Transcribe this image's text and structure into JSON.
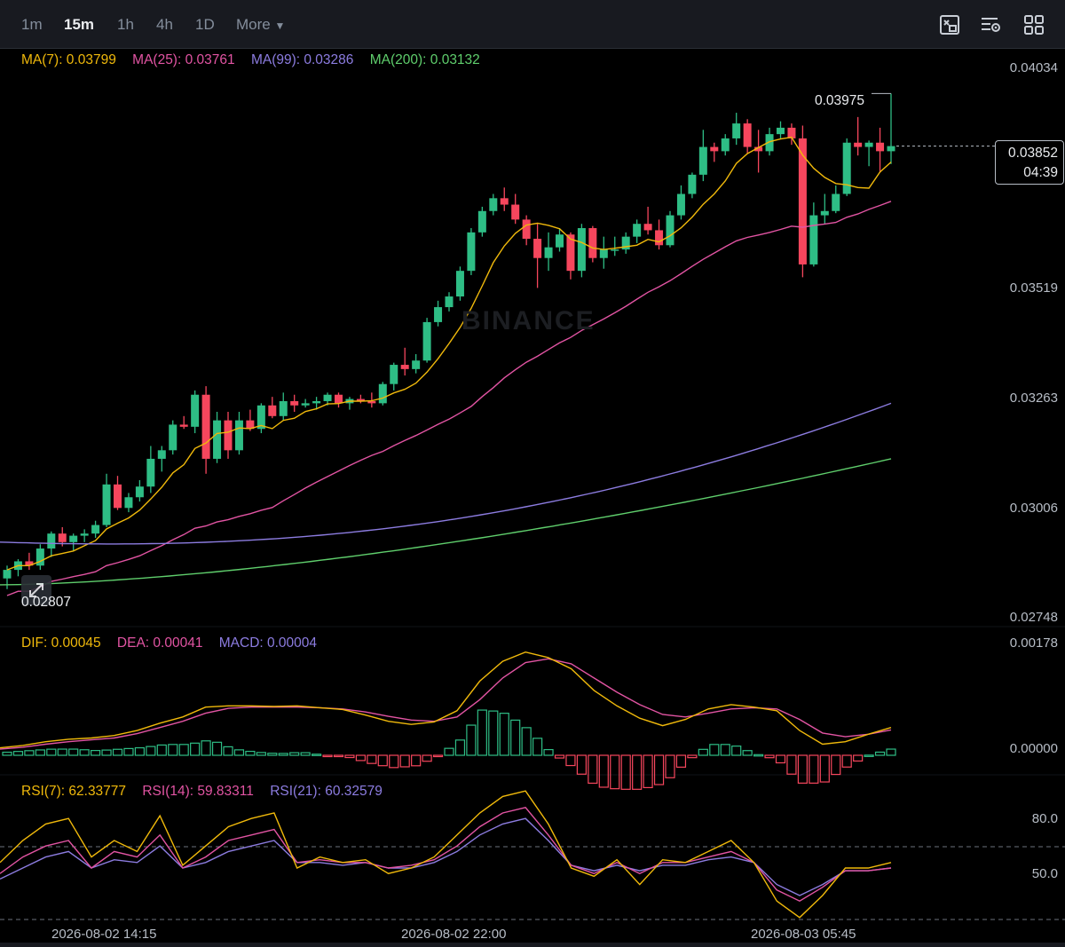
{
  "toolbar": {
    "timeframes": [
      "1m",
      "15m",
      "1h",
      "4h",
      "1D"
    ],
    "active": "15m",
    "more_label": "More",
    "icons": [
      "chart-type-icon",
      "indicator-settings-icon",
      "layout-grid-icon"
    ]
  },
  "colors": {
    "up": "#2ebd85",
    "down": "#f6465d",
    "ma7": "#f0b90b",
    "ma25": "#e254a3",
    "ma99": "#8c7ce0",
    "ma200": "#5fce6c",
    "dif": "#f0b90b",
    "dea": "#e254a3",
    "macd": "#8c7ce0"
  },
  "legends": {
    "ma": {
      "ma7": "MA(7): 0.03799",
      "ma25": "MA(25): 0.03761",
      "ma99": "MA(99): 0.03286",
      "ma200": "MA(200): 0.03132"
    },
    "macd": {
      "dif": "DIF: 0.00045",
      "dea": "DEA: 0.00041",
      "macd": "MACD: 0.00004"
    },
    "rsi": {
      "rsi7": "RSI(7): 62.33777",
      "rsi14": "RSI(14): 59.83311",
      "rsi21": "RSI(21): 60.32579"
    }
  },
  "price_axis": [
    "0.04034",
    "0.03519",
    "0.03263",
    "0.03006",
    "0.02748"
  ],
  "macd_axis": [
    "0.00178",
    "0.00000"
  ],
  "rsi_axis": [
    "80.0",
    "50.0"
  ],
  "time_axis": [
    "2026-08-02 14:15",
    "2026-08-02 22:00",
    "2026-08-03 05:45"
  ],
  "current_price": "0.03852",
  "countdown": "04:39",
  "max_label": "0.03975",
  "min_label": "0.02807",
  "watermark": "BINANCE",
  "chart_data": {
    "type": "candlestick",
    "price_range": [
      0.02748,
      0.04034
    ],
    "candles": [
      [
        0.0284,
        0.0287,
        0.02815,
        0.0286
      ],
      [
        0.0286,
        0.02885,
        0.02845,
        0.0288
      ],
      [
        0.0288,
        0.029,
        0.0286,
        0.0287
      ],
      [
        0.0287,
        0.0292,
        0.0286,
        0.0291
      ],
      [
        0.0291,
        0.0295,
        0.0289,
        0.02945
      ],
      [
        0.02945,
        0.0296,
        0.02915,
        0.02925
      ],
      [
        0.02925,
        0.02945,
        0.02905,
        0.0294
      ],
      [
        0.0294,
        0.02955,
        0.02925,
        0.02945
      ],
      [
        0.02945,
        0.02975,
        0.02935,
        0.02965
      ],
      [
        0.02965,
        0.03085,
        0.0296,
        0.0306
      ],
      [
        0.0306,
        0.0308,
        0.03,
        0.03005
      ],
      [
        0.03005,
        0.0304,
        0.02995,
        0.0303
      ],
      [
        0.0303,
        0.0307,
        0.0302,
        0.03055
      ],
      [
        0.03055,
        0.0315,
        0.0304,
        0.0312
      ],
      [
        0.0312,
        0.0315,
        0.0309,
        0.0314
      ],
      [
        0.0314,
        0.0321,
        0.0313,
        0.032
      ],
      [
        0.032,
        0.0322,
        0.0319,
        0.03195
      ],
      [
        0.03195,
        0.0328,
        0.0318,
        0.0327
      ],
      [
        0.0327,
        0.0329,
        0.03085,
        0.0312
      ],
      [
        0.0312,
        0.0323,
        0.0311,
        0.0321
      ],
      [
        0.0321,
        0.0323,
        0.0312,
        0.0314
      ],
      [
        0.0314,
        0.0323,
        0.0313,
        0.0321
      ],
      [
        0.0321,
        0.03235,
        0.03185,
        0.0319
      ],
      [
        0.0319,
        0.0325,
        0.0318,
        0.03245
      ],
      [
        0.03245,
        0.03265,
        0.03215,
        0.0322
      ],
      [
        0.0322,
        0.03275,
        0.0321,
        0.03255
      ],
      [
        0.03255,
        0.0327,
        0.0323,
        0.03245
      ],
      [
        0.03245,
        0.0326,
        0.0324,
        0.0325
      ],
      [
        0.0325,
        0.03265,
        0.03235,
        0.03255
      ],
      [
        0.03255,
        0.03275,
        0.03245,
        0.0327
      ],
      [
        0.0327,
        0.03275,
        0.0324,
        0.0325
      ],
      [
        0.0325,
        0.03265,
        0.03235,
        0.0326
      ],
      [
        0.0326,
        0.0327,
        0.0325,
        0.03255
      ],
      [
        0.03255,
        0.03275,
        0.0324,
        0.0325
      ],
      [
        0.0325,
        0.033,
        0.03245,
        0.03295
      ],
      [
        0.03295,
        0.03345,
        0.0328,
        0.0334
      ],
      [
        0.0334,
        0.0338,
        0.03315,
        0.0333
      ],
      [
        0.0333,
        0.03365,
        0.0332,
        0.0335
      ],
      [
        0.0335,
        0.0345,
        0.03345,
        0.0344
      ],
      [
        0.0344,
        0.0349,
        0.0343,
        0.03475
      ],
      [
        0.03475,
        0.0351,
        0.03465,
        0.035
      ],
      [
        0.035,
        0.0357,
        0.0349,
        0.0356
      ],
      [
        0.0356,
        0.0366,
        0.0355,
        0.0365
      ],
      [
        0.0365,
        0.0371,
        0.0364,
        0.037
      ],
      [
        0.037,
        0.0374,
        0.0369,
        0.0373
      ],
      [
        0.0373,
        0.03755,
        0.037,
        0.03715
      ],
      [
        0.03715,
        0.0374,
        0.0367,
        0.0368
      ],
      [
        0.0368,
        0.0369,
        0.0362,
        0.03635
      ],
      [
        0.03635,
        0.0367,
        0.0352,
        0.0359
      ],
      [
        0.0359,
        0.0365,
        0.0356,
        0.03615
      ],
      [
        0.03615,
        0.0366,
        0.03605,
        0.03645
      ],
      [
        0.03645,
        0.0365,
        0.0354,
        0.0356
      ],
      [
        0.0356,
        0.0367,
        0.03545,
        0.0366
      ],
      [
        0.0366,
        0.03665,
        0.0358,
        0.0359
      ],
      [
        0.0359,
        0.0364,
        0.03565,
        0.0361
      ],
      [
        0.0361,
        0.0364,
        0.03595,
        0.0361
      ],
      [
        0.0361,
        0.0365,
        0.036,
        0.0364
      ],
      [
        0.0364,
        0.0368,
        0.03625,
        0.0367
      ],
      [
        0.0367,
        0.0371,
        0.03645,
        0.03655
      ],
      [
        0.03655,
        0.0368,
        0.0361,
        0.0362
      ],
      [
        0.0362,
        0.037,
        0.03615,
        0.0369
      ],
      [
        0.0369,
        0.0376,
        0.0368,
        0.0374
      ],
      [
        0.0374,
        0.0379,
        0.0373,
        0.03785
      ],
      [
        0.03785,
        0.0389,
        0.0377,
        0.0385
      ],
      [
        0.0385,
        0.0386,
        0.03815,
        0.0384
      ],
      [
        0.0384,
        0.0388,
        0.0383,
        0.0387
      ],
      [
        0.0387,
        0.0393,
        0.03855,
        0.03905
      ],
      [
        0.03905,
        0.03915,
        0.03835,
        0.0385
      ],
      [
        0.0385,
        0.0389,
        0.0379,
        0.0384
      ],
      [
        0.0384,
        0.03895,
        0.0383,
        0.0388
      ],
      [
        0.0388,
        0.0391,
        0.0387,
        0.03895
      ],
      [
        0.03895,
        0.03905,
        0.03855,
        0.0387
      ],
      [
        0.0387,
        0.039,
        0.03545,
        0.03575
      ],
      [
        0.03575,
        0.0372,
        0.0357,
        0.0369
      ],
      [
        0.0369,
        0.0374,
        0.0367,
        0.037
      ],
      [
        0.037,
        0.0376,
        0.03695,
        0.0374
      ],
      [
        0.0374,
        0.0387,
        0.03735,
        0.0386
      ],
      [
        0.0386,
        0.0392,
        0.0383,
        0.0385
      ],
      [
        0.0385,
        0.03865,
        0.03805,
        0.0386
      ],
      [
        0.0386,
        0.03895,
        0.0379,
        0.0384
      ],
      [
        0.0384,
        0.03975,
        0.0381,
        0.03852
      ]
    ],
    "ma200_endpoints": [
      0.02825,
      0.0312
    ],
    "ma99_endpoints": [
      0.02925,
      0.0325
    ],
    "macd": {
      "range": [
        0,
        0.00178
      ],
      "dif": [
        0.00012,
        0.00016,
        0.00022,
        0.00026,
        0.00028,
        0.00032,
        0.0004,
        0.00052,
        0.00062,
        0.00078,
        0.0008,
        0.0008,
        0.00079,
        0.0008,
        0.00077,
        0.00074,
        0.00065,
        0.00055,
        0.0005,
        0.00054,
        0.00072,
        0.0012,
        0.00152,
        0.00167,
        0.00158,
        0.0014,
        0.00105,
        0.0008,
        0.0006,
        0.00048,
        0.00058,
        0.00075,
        0.00082,
        0.00078,
        0.00072,
        0.0004,
        0.00018,
        0.00022,
        0.00034,
        0.00045
      ],
      "dea": [
        0.0001,
        0.00013,
        0.00018,
        0.00022,
        0.00025,
        0.00028,
        0.00035,
        0.00045,
        0.00055,
        0.00068,
        0.00076,
        0.00078,
        0.00078,
        0.00078,
        0.00077,
        0.00075,
        0.0007,
        0.00063,
        0.00057,
        0.00055,
        0.00062,
        0.0009,
        0.00125,
        0.0015,
        0.00156,
        0.00148,
        0.00125,
        0.00102,
        0.00082,
        0.00066,
        0.00062,
        0.00068,
        0.00075,
        0.00077,
        0.00075,
        0.00058,
        0.00036,
        0.0003,
        0.00034,
        0.00041
      ]
    },
    "rsi": {
      "range": [
        40,
        90
      ],
      "rsi7": [
        62,
        70,
        76,
        78,
        64,
        70,
        66,
        79,
        61,
        68,
        75,
        78,
        80,
        60,
        64,
        62,
        63,
        58,
        60,
        64,
        72,
        80,
        86,
        88,
        76,
        60,
        57,
        63,
        54,
        63,
        62,
        66,
        70,
        62,
        48,
        42,
        50,
        60,
        60,
        62
      ],
      "rsi14": [
        58,
        64,
        68,
        70,
        60,
        66,
        64,
        72,
        60,
        64,
        70,
        72,
        74,
        62,
        63,
        62,
        62,
        60,
        61,
        63,
        68,
        75,
        80,
        82,
        72,
        61,
        58,
        62,
        58,
        62,
        62,
        64,
        66,
        62,
        52,
        48,
        53,
        59,
        59,
        60
      ],
      "rsi21": [
        56,
        60,
        64,
        66,
        60,
        63,
        62,
        68,
        60,
        62,
        66,
        68,
        70,
        62,
        62,
        61,
        62,
        60,
        60,
        62,
        66,
        72,
        76,
        78,
        70,
        61,
        59,
        61,
        59,
        61,
        61,
        63,
        64,
        62,
        54,
        50,
        54,
        59,
        59,
        60
      ]
    }
  }
}
